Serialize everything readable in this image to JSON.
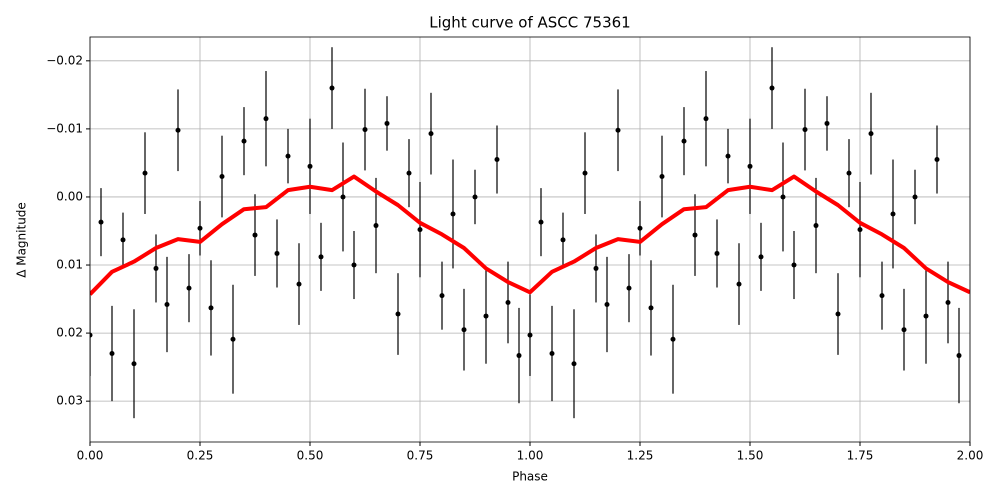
{
  "chart_data": {
    "type": "scatter",
    "title": "Light curve of ASCC 75361",
    "xlabel": "Phase",
    "ylabel": "Δ Magnitude",
    "xlim": [
      0,
      2
    ],
    "ylim": [
      0.036,
      -0.0235
    ],
    "grid": true,
    "xticks": [
      {
        "value": 0,
        "label": "0.00"
      },
      0.25,
      {
        "value": 0.5,
        "label": "0.50"
      },
      0.75,
      {
        "value": 1,
        "label": "1.00"
      },
      1.25,
      {
        "value": 1.5,
        "label": "1.50"
      },
      1.75,
      {
        "value": 2,
        "label": "2.00"
      }
    ],
    "yticks": [
      {
        "value": -0.02,
        "label": "−0.02"
      },
      {
        "value": -0.01,
        "label": "−0.01"
      },
      {
        "value": 0,
        "label": "0.00"
      },
      0.01,
      0.02,
      0.03
    ],
    "series": [
      {
        "type": "errorbar",
        "color": "#000000",
        "x": [
          0,
          0.025,
          0.05,
          0.075,
          0.1,
          0.125,
          0.15,
          0.175,
          0.2,
          0.225,
          0.25,
          0.275,
          0.3,
          0.325,
          0.35,
          0.375,
          0.4,
          0.425,
          0.45,
          0.475,
          0.5,
          0.525,
          0.55,
          0.575,
          0.6,
          0.625,
          0.65,
          0.675,
          0.7,
          0.725,
          0.75,
          0.775,
          0.8,
          0.825,
          0.85,
          0.875,
          0.9,
          0.925,
          0.95,
          0.975,
          1,
          1.025,
          1.05,
          1.075,
          1.1,
          1.125,
          1.15,
          1.175,
          1.2,
          1.225,
          1.25,
          1.275,
          1.3,
          1.325,
          1.35,
          1.375,
          1.4,
          1.425,
          1.45,
          1.475,
          1.5,
          1.525,
          1.55,
          1.575,
          1.6,
          1.625,
          1.65,
          1.675,
          1.7,
          1.725,
          1.75,
          1.775,
          1.8,
          1.825,
          1.85,
          1.875,
          1.9,
          1.925,
          1.95,
          1.975
        ],
        "values": [
          0.0203,
          0.0037,
          0.023,
          0.0063,
          0.0245,
          -0.0035,
          0.0105,
          0.0158,
          -0.0098,
          0.0134,
          0.0046,
          0.0163,
          -0.003,
          0.0209,
          -0.0082,
          0.0056,
          -0.0115,
          0.0083,
          -0.006,
          0.0128,
          -0.0045,
          0.0088,
          -0.016,
          0,
          0.01,
          -0.0099,
          0.0042,
          -0.0108,
          0.0172,
          -0.0035,
          0.0048,
          -0.0093,
          0.0145,
          0.0025,
          0.0195,
          0,
          0.0175,
          -0.0055,
          0.0155,
          0.0233,
          0.0203,
          0.0037,
          0.023,
          0.0063,
          0.0245,
          -0.0035,
          0.0105,
          0.0158,
          -0.0098,
          0.0134,
          0.0046,
          0.0163,
          -0.003,
          0.0209,
          -0.0082,
          0.0056,
          -0.0115,
          0.0083,
          -0.006,
          0.0128,
          -0.0045,
          0.0088,
          -0.016,
          0,
          0.01,
          -0.0099,
          0.0042,
          -0.0108,
          0.0172,
          -0.0035,
          0.0048,
          -0.0093,
          0.0145,
          0.0025,
          0.0195,
          0,
          0.0175,
          -0.0055,
          0.0155,
          0.0233
        ],
        "errors": [
          0.006,
          0.005,
          0.007,
          0.004,
          0.008,
          0.006,
          0.005,
          0.007,
          0.006,
          0.005,
          0.004,
          0.007,
          0.006,
          0.008,
          0.005,
          0.006,
          0.007,
          0.005,
          0.004,
          0.006,
          0.007,
          0.005,
          0.006,
          0.008,
          0.005,
          0.006,
          0.007,
          0.004,
          0.006,
          0.005,
          0.007,
          0.006,
          0.005,
          0.008,
          0.006,
          0.004,
          0.007,
          0.005,
          0.006,
          0.007,
          0.006,
          0.005,
          0.007,
          0.004,
          0.008,
          0.006,
          0.005,
          0.007,
          0.006,
          0.005,
          0.004,
          0.007,
          0.006,
          0.008,
          0.005,
          0.006,
          0.007,
          0.005,
          0.004,
          0.006,
          0.007,
          0.005,
          0.006,
          0.008,
          0.005,
          0.006,
          0.007,
          0.004,
          0.006,
          0.005,
          0.007,
          0.006,
          0.005,
          0.008,
          0.006,
          0.004,
          0.007,
          0.005,
          0.006,
          0.007
        ]
      },
      {
        "type": "line",
        "color": "#ff0000",
        "x": [
          0,
          0.05,
          0.1,
          0.15,
          0.2,
          0.25,
          0.3,
          0.35,
          0.4,
          0.45,
          0.5,
          0.55,
          0.6,
          0.65,
          0.7,
          0.75,
          0.8,
          0.85,
          0.9,
          0.95,
          1,
          1.05,
          1.1,
          1.15,
          1.2,
          1.25,
          1.3,
          1.35,
          1.4,
          1.45,
          1.5,
          1.55,
          1.6,
          1.65,
          1.7,
          1.75,
          1.8,
          1.85,
          1.9,
          1.95,
          2
        ],
        "values": [
          0.0143,
          0.011,
          0.0095,
          0.0075,
          0.0062,
          0.0066,
          0.004,
          0.0018,
          0.0015,
          -0.001,
          -0.0015,
          -0.001,
          -0.003,
          -0.0008,
          0.0012,
          0.0038,
          0.0055,
          0.0075,
          0.0105,
          0.0125,
          0.014,
          0.011,
          0.0095,
          0.0075,
          0.0062,
          0.0066,
          0.004,
          0.0018,
          0.0015,
          -0.001,
          -0.0015,
          -0.001,
          -0.003,
          -0.0008,
          0.0012,
          0.0038,
          0.0055,
          0.0075,
          0.0105,
          0.0125,
          0.014
        ]
      }
    ]
  }
}
